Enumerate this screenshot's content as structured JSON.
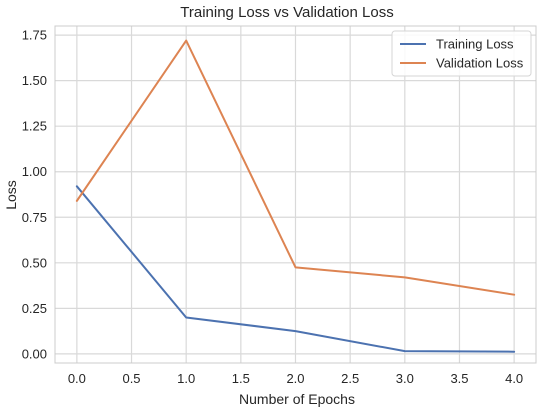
{
  "chart_data": {
    "type": "line",
    "title": "Training Loss vs Validation Loss",
    "xlabel": "Number of Epochs",
    "ylabel": "Loss",
    "x": [
      0,
      1,
      2,
      3,
      4
    ],
    "xlim": [
      -0.2,
      4.2
    ],
    "ylim": [
      -0.05,
      1.8
    ],
    "xticks": [
      0.0,
      0.5,
      1.0,
      1.5,
      2.0,
      2.5,
      3.0,
      3.5,
      4.0
    ],
    "xtick_labels": [
      "0.0",
      "0.5",
      "1.0",
      "1.5",
      "2.0",
      "2.5",
      "3.0",
      "3.5",
      "4.0"
    ],
    "yticks": [
      0.0,
      0.25,
      0.5,
      0.75,
      1.0,
      1.25,
      1.5,
      1.75
    ],
    "ytick_labels": [
      "0.00",
      "0.25",
      "0.50",
      "0.75",
      "1.00",
      "1.25",
      "1.50",
      "1.75"
    ],
    "grid": true,
    "legend_position": "top-right",
    "series": [
      {
        "name": "Training Loss",
        "color": "#4c72b0",
        "values": [
          0.92,
          0.2,
          0.125,
          0.015,
          0.012
        ]
      },
      {
        "name": "Validation Loss",
        "color": "#dd8452",
        "values": [
          0.84,
          1.72,
          0.475,
          0.42,
          0.325
        ]
      }
    ]
  }
}
